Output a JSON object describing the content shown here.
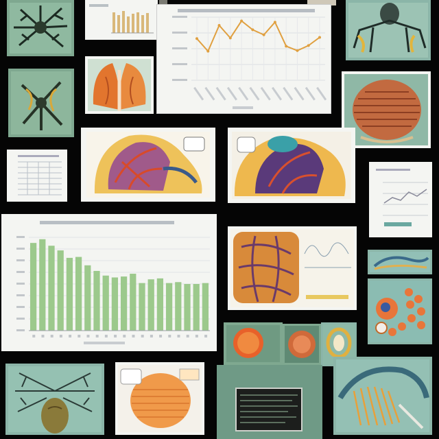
{
  "collage": {
    "background": "#050505",
    "colors": {
      "paper": "#f4f5f2",
      "green_card": "#7fa890",
      "teal_card": "#8bb5a8",
      "orange": "#e8853a",
      "line_chart": "#e0a040",
      "bar_chart": "#9cc98c"
    }
  },
  "chart_data": [
    {
      "type": "line",
      "title": "",
      "xlabel": "",
      "ylabel": "",
      "x": [
        1,
        2,
        3,
        4,
        5,
        6,
        7,
        8,
        9,
        10,
        11,
        12
      ],
      "values": [
        66,
        46,
        87,
        67,
        94,
        80,
        72,
        92,
        54,
        47,
        55,
        68
      ],
      "ylim": [
        0,
        100
      ],
      "grid": true
    },
    {
      "type": "bar",
      "title": "",
      "xlabel": "",
      "ylabel": "",
      "categories": [
        "1",
        "2",
        "3",
        "4",
        "5",
        "6",
        "7",
        "8",
        "9",
        "10",
        "11",
        "12",
        "13",
        "14",
        "15",
        "16",
        "17",
        "18",
        "19",
        "20"
      ],
      "values": [
        94,
        98,
        91,
        86,
        78,
        79,
        70,
        64,
        59,
        57,
        58,
        61,
        51,
        55,
        56,
        51,
        52,
        50,
        50,
        51
      ],
      "ylim": [
        0,
        100
      ],
      "grid": true
    }
  ]
}
